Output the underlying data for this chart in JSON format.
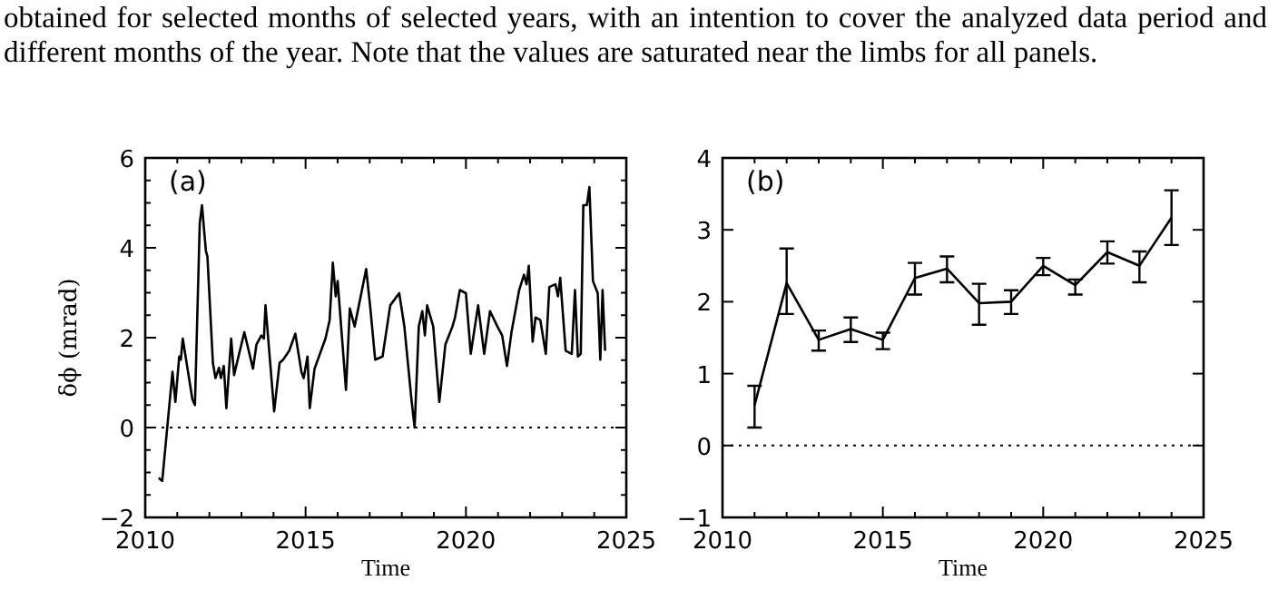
{
  "chart_data": [
    {
      "type": "line",
      "title": "(a)",
      "xlabel": "Time",
      "ylabel": "δϕ (mrad)",
      "annotations": [
        "obtained for selected months of selected years, with an intention to cover the analyzed data period and different months of the year. Note that the values are saturated near the limbs for all panels."
      ],
      "x": [
        2010.42,
        2010.53,
        2010.85,
        2010.94,
        2011.06,
        2011.11,
        2011.17,
        2011.47,
        2011.55,
        2011.7,
        2011.77,
        2011.89,
        2011.94,
        2012.11,
        2012.19,
        2012.3,
        2012.36,
        2012.45,
        2012.53,
        2012.68,
        2012.77,
        2013.09,
        2013.36,
        2013.47,
        2013.62,
        2013.7,
        2013.75,
        2014.02,
        2014.19,
        2014.3,
        2014.49,
        2014.68,
        2014.87,
        2014.94,
        2015.06,
        2015.13,
        2015.28,
        2015.62,
        2015.75,
        2015.85,
        2015.94,
        2016.0,
        2016.26,
        2016.38,
        2016.53,
        2016.89,
        2017.02,
        2017.17,
        2017.4,
        2017.64,
        2017.92,
        2018.08,
        2018.3,
        2018.4,
        2018.53,
        2018.64,
        2018.72,
        2018.79,
        2018.98,
        2019.17,
        2019.36,
        2019.58,
        2019.66,
        2019.81,
        2020.0,
        2020.15,
        2020.38,
        2020.57,
        2020.75,
        2020.98,
        2021.13,
        2021.28,
        2021.42,
        2021.66,
        2021.81,
        2021.89,
        2021.96,
        2022.08,
        2022.17,
        2022.32,
        2022.49,
        2022.6,
        2022.79,
        2022.87,
        2022.94,
        2023.11,
        2023.3,
        2023.4,
        2023.49,
        2023.58,
        2023.66,
        2023.77,
        2023.85,
        2023.96,
        2024.11,
        2024.19,
        2024.26,
        2024.34
      ],
      "series": [
        {
          "color": "#000000",
          "values": [
            -1.12,
            -1.19,
            1.24,
            0.57,
            1.58,
            1.51,
            1.98,
            0.63,
            0.5,
            4.54,
            4.95,
            3.94,
            3.8,
            1.44,
            1.1,
            1.33,
            1.1,
            1.37,
            0.43,
            1.98,
            1.17,
            2.12,
            1.31,
            1.85,
            2.05,
            1.98,
            2.72,
            0.36,
            1.44,
            1.51,
            1.71,
            2.09,
            1.24,
            1.1,
            1.58,
            0.43,
            1.31,
            1.98,
            2.39,
            3.67,
            2.92,
            3.26,
            0.84,
            2.65,
            2.25,
            3.53,
            2.65,
            1.51,
            1.58,
            2.72,
            2.99,
            2.25,
            0.63,
            0.0,
            2.25,
            2.59,
            2.05,
            2.72,
            2.25,
            0.57,
            1.85,
            2.25,
            2.45,
            3.06,
            2.99,
            1.64,
            2.72,
            1.64,
            2.59,
            2.25,
            2.05,
            1.37,
            2.12,
            3.06,
            3.4,
            3.19,
            3.6,
            1.91,
            2.45,
            2.39,
            1.64,
            3.13,
            3.19,
            2.92,
            3.33,
            1.71,
            1.64,
            3.06,
            1.58,
            1.64,
            4.95,
            4.95,
            5.35,
            3.26,
            2.99,
            1.51,
            3.06,
            1.71
          ]
        }
      ],
      "xlim": [
        2010,
        2025
      ],
      "xticks": [
        2010,
        {
          "value": 2011,
          "label": null
        },
        {
          "value": 2012,
          "label": null
        },
        {
          "value": 2013,
          "label": null
        },
        {
          "value": 2014,
          "label": null
        },
        2015,
        {
          "value": 2016,
          "label": null
        },
        {
          "value": 2017,
          "label": null
        },
        {
          "value": 2018,
          "label": null
        },
        {
          "value": 2019,
          "label": null
        },
        2020,
        {
          "value": 2021,
          "label": null
        },
        {
          "value": 2022,
          "label": null
        },
        {
          "value": 2023,
          "label": null
        },
        {
          "value": 2024,
          "label": null
        },
        2025
      ],
      "ylim": [
        -2,
        6
      ],
      "yticks": [
        {
          "value": -2,
          "label": "−2"
        },
        {
          "value": -1.5,
          "label": null
        },
        {
          "value": -1,
          "label": null
        },
        {
          "value": -0.5,
          "label": null
        },
        0,
        {
          "value": 0.5,
          "label": null
        },
        {
          "value": 1,
          "label": null
        },
        {
          "value": 1.5,
          "label": null
        },
        2,
        {
          "value": 2.5,
          "label": null
        },
        {
          "value": 3,
          "label": null
        },
        {
          "value": 3.5,
          "label": null
        },
        4,
        {
          "value": 4.5,
          "label": null
        },
        {
          "value": 5,
          "label": null
        },
        {
          "value": 5.5,
          "label": null
        },
        6
      ],
      "ref_lines": [
        {
          "axis": "y",
          "value": 0,
          "line_style": "dotted"
        }
      ],
      "grid": false,
      "marker": "none",
      "line_style": "solid"
    },
    {
      "type": "line",
      "title": "(b)",
      "xlabel": "Time",
      "x": [
        2011,
        2012,
        2013,
        2014,
        2015,
        2016,
        2017,
        2018,
        2019,
        2020,
        2021,
        2022,
        2023,
        2024
      ],
      "series": [
        {
          "color": "#000000",
          "values": [
            0.56,
            2.26,
            1.47,
            1.62,
            1.47,
            2.33,
            2.46,
            1.98,
            2.0,
            2.5,
            2.23,
            2.69,
            2.5,
            3.17
          ],
          "errors": [
            [
              0.25,
              0.83
            ],
            [
              1.83,
              2.74
            ],
            [
              1.32,
              1.6
            ],
            [
              1.44,
              1.78
            ],
            [
              1.34,
              1.57
            ],
            [
              2.1,
              2.54
            ],
            [
              2.27,
              2.63
            ],
            [
              1.68,
              2.25
            ],
            [
              1.83,
              2.16
            ],
            [
              2.37,
              2.61
            ],
            [
              2.1,
              2.31
            ],
            [
              2.53,
              2.84
            ],
            [
              2.27,
              2.7
            ],
            [
              2.79,
              3.55
            ]
          ]
        }
      ],
      "xlim": [
        2010,
        2025
      ],
      "xticks": [
        2010,
        {
          "value": 2011,
          "label": null
        },
        {
          "value": 2012,
          "label": null
        },
        {
          "value": 2013,
          "label": null
        },
        {
          "value": 2014,
          "label": null
        },
        2015,
        {
          "value": 2016,
          "label": null
        },
        {
          "value": 2017,
          "label": null
        },
        {
          "value": 2018,
          "label": null
        },
        {
          "value": 2019,
          "label": null
        },
        2020,
        {
          "value": 2021,
          "label": null
        },
        {
          "value": 2022,
          "label": null
        },
        {
          "value": 2023,
          "label": null
        },
        {
          "value": 2024,
          "label": null
        },
        2025
      ],
      "ylim": [
        -1,
        4
      ],
      "yticks": [
        {
          "value": -1,
          "label": "−1"
        },
        0,
        1,
        2,
        3,
        4
      ],
      "ref_lines": [
        {
          "axis": "y",
          "value": 0,
          "line_style": "dotted"
        }
      ],
      "grid": false,
      "marker": "none",
      "line_style": "solid"
    }
  ]
}
